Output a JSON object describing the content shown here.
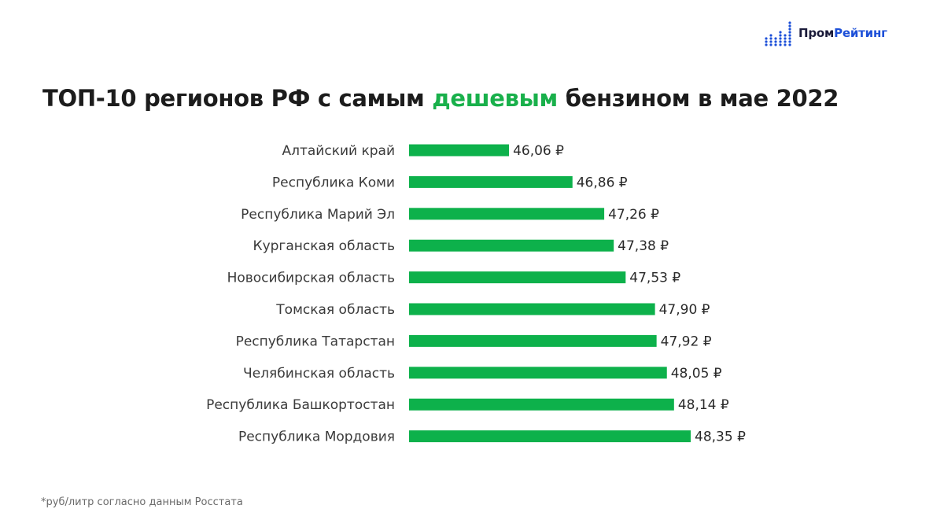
{
  "brand": {
    "name_part1": "Пром",
    "name_part2": "Рейтинг",
    "accent": "#1c4fd8",
    "dark": "#1b1b3a"
  },
  "title": {
    "before": "ТОП-10 регионов РФ с самым ",
    "highlight": "дешевым",
    "after": " бензином в мае 2022",
    "highlight_color": "#19b04b"
  },
  "footnote": "*руб/литр согласно данным Росстата",
  "chart_data": {
    "type": "bar",
    "orientation": "horizontal",
    "title": "ТОП-10 регионов РФ с самым дешевым бензином в мае 2022",
    "categories": [
      "Алтайский край",
      "Республика Коми",
      "Республика Марий Эл",
      "Курганская область",
      "Новосибирская область",
      "Томская область",
      "Республика Татарстан",
      "Челябинская область",
      "Республика Башкортостан",
      "Республика Мордовия"
    ],
    "values": [
      46.06,
      46.86,
      47.26,
      47.38,
      47.53,
      47.9,
      47.92,
      48.05,
      48.14,
      48.35
    ],
    "value_labels": [
      "46,06 ₽",
      "46,86 ₽",
      "47,26 ₽",
      "47,38 ₽",
      "47,53 ₽",
      "47,90 ₽",
      "47,92 ₽",
      "48,05 ₽",
      "48,14 ₽",
      "48,35 ₽"
    ],
    "xlim": [
      44.8,
      48.35
    ],
    "bar_color": "#0db14b",
    "grid": false,
    "legend": "none"
  }
}
